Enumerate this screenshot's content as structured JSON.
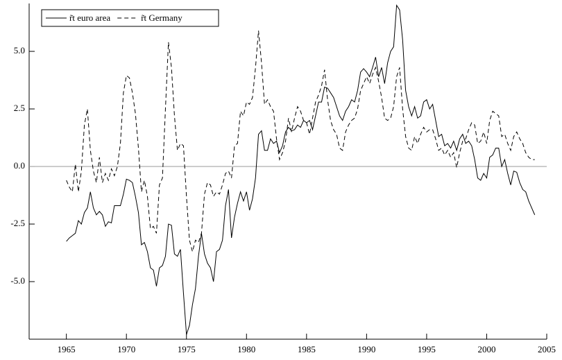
{
  "chart_data": {
    "type": "line",
    "x": [
      1965,
      1965.25,
      1965.5,
      1965.75,
      1966,
      1966.25,
      1966.5,
      1966.75,
      1967,
      1967.25,
      1967.5,
      1967.75,
      1968,
      1968.25,
      1968.5,
      1968.75,
      1969,
      1969.25,
      1969.5,
      1969.75,
      1970,
      1970.25,
      1970.5,
      1970.75,
      1971,
      1971.25,
      1971.5,
      1971.75,
      1972,
      1972.25,
      1972.5,
      1972.75,
      1973,
      1973.25,
      1973.5,
      1973.75,
      1974,
      1974.25,
      1974.5,
      1974.75,
      1975,
      1975.25,
      1975.5,
      1975.75,
      1976,
      1976.25,
      1976.5,
      1976.75,
      1977,
      1977.25,
      1977.5,
      1977.75,
      1978,
      1978.25,
      1978.5,
      1978.75,
      1979,
      1979.25,
      1979.5,
      1979.75,
      1980,
      1980.25,
      1980.5,
      1980.75,
      1981,
      1981.25,
      1981.5,
      1981.75,
      1982,
      1982.25,
      1982.5,
      1982.75,
      1983,
      1983.25,
      1983.5,
      1983.75,
      1984,
      1984.25,
      1984.5,
      1984.75,
      1985,
      1985.25,
      1985.5,
      1985.75,
      1986,
      1986.25,
      1986.5,
      1986.75,
      1987,
      1987.25,
      1987.5,
      1987.75,
      1988,
      1988.25,
      1988.5,
      1988.75,
      1989,
      1989.25,
      1989.5,
      1989.75,
      1990,
      1990.25,
      1990.5,
      1990.75,
      1991,
      1991.25,
      1991.5,
      1991.75,
      1992,
      1992.25,
      1992.5,
      1992.75,
      1993,
      1993.25,
      1993.5,
      1993.75,
      1994,
      1994.25,
      1994.5,
      1994.75,
      1995,
      1995.25,
      1995.5,
      1995.75,
      1996,
      1996.25,
      1996.5,
      1996.75,
      1997,
      1997.25,
      1997.5,
      1997.75,
      1998,
      1998.25,
      1998.5,
      1998.75,
      1999,
      1999.25,
      1999.5,
      1999.75,
      2000,
      2000.25,
      2000.5,
      2000.75,
      2001,
      2001.25,
      2001.5,
      2001.75,
      2002,
      2002.25,
      2002.5,
      2002.75,
      2003,
      2003.25,
      2003.5,
      2003.75,
      2004
    ],
    "series": [
      {
        "name": "r̃t euro area",
        "color": "#000000",
        "dash": false,
        "values": [
          -3.25,
          -3.1,
          -3.0,
          -2.9,
          -2.35,
          -2.5,
          -2.0,
          -1.8,
          -1.1,
          -1.8,
          -2.1,
          -1.95,
          -2.1,
          -2.6,
          -2.4,
          -2.45,
          -1.7,
          -1.7,
          -1.7,
          -1.2,
          -0.55,
          -0.6,
          -0.7,
          -1.3,
          -2.0,
          -3.4,
          -3.3,
          -3.7,
          -4.4,
          -4.5,
          -5.2,
          -4.4,
          -4.3,
          -3.9,
          -2.5,
          -2.55,
          -3.8,
          -3.9,
          -3.6,
          -5.5,
          -7.3,
          -6.9,
          -6.0,
          -5.3,
          -3.9,
          -2.9,
          -3.8,
          -4.2,
          -4.4,
          -5.0,
          -3.7,
          -3.6,
          -3.2,
          -1.7,
          -1.0,
          -3.1,
          -2.2,
          -1.6,
          -1.1,
          -1.5,
          -1.1,
          -1.9,
          -1.4,
          -0.5,
          1.4,
          1.55,
          0.7,
          0.7,
          1.2,
          1.0,
          1.1,
          0.6,
          0.9,
          1.5,
          1.7,
          1.55,
          1.6,
          1.8,
          1.7,
          2.0,
          1.9,
          2.0,
          1.6,
          2.2,
          2.8,
          2.8,
          3.45,
          3.4,
          3.2,
          3.0,
          2.6,
          2.2,
          2.0,
          2.4,
          2.6,
          2.9,
          2.8,
          3.3,
          4.1,
          4.25,
          4.1,
          3.9,
          4.3,
          4.75,
          3.9,
          4.3,
          3.6,
          4.5,
          5.0,
          5.2,
          7.0,
          6.8,
          5.5,
          3.3,
          2.6,
          2.2,
          2.6,
          2.1,
          2.2,
          2.8,
          2.9,
          2.5,
          2.7,
          2.0,
          1.3,
          1.4,
          0.9,
          1.0,
          0.8,
          1.1,
          0.7,
          1.2,
          1.4,
          1.0,
          1.1,
          0.9,
          0.3,
          -0.5,
          -0.6,
          -0.3,
          -0.5,
          0.4,
          0.5,
          0.8,
          0.8,
          0.0,
          0.3,
          -0.3,
          -0.8,
          -0.2,
          -0.25,
          -0.7,
          -1.0,
          -1.1,
          -1.5,
          -1.8,
          -2.1
        ]
      },
      {
        "name": "r̃t Germany",
        "color": "#000000",
        "dash": true,
        "values": [
          -0.6,
          -0.9,
          -1.1,
          0.1,
          -1.1,
          -0.2,
          1.8,
          2.5,
          0.7,
          -0.2,
          -0.7,
          0.4,
          -0.7,
          -0.3,
          -0.6,
          -0.1,
          -0.4,
          0.0,
          1.0,
          3.2,
          3.95,
          3.85,
          3.2,
          2.3,
          0.8,
          -1.1,
          -0.6,
          -1.3,
          -2.7,
          -2.6,
          -2.9,
          -0.8,
          -0.5,
          2.5,
          5.4,
          4.3,
          2.2,
          0.7,
          1.0,
          0.9,
          -1.3,
          -3.2,
          -3.7,
          -3.2,
          -3.3,
          -2.9,
          -1.2,
          -0.7,
          -0.8,
          -1.3,
          -1.1,
          -1.2,
          -0.8,
          -0.3,
          -0.2,
          -0.5,
          0.9,
          1.0,
          2.4,
          2.2,
          2.8,
          2.7,
          3.0,
          4.3,
          5.9,
          4.5,
          2.7,
          2.9,
          2.6,
          2.4,
          1.2,
          0.3,
          0.6,
          1.1,
          2.1,
          1.5,
          2.1,
          2.6,
          2.4,
          2.0,
          1.9,
          1.4,
          2.1,
          2.8,
          3.1,
          3.5,
          4.2,
          2.9,
          2.0,
          1.6,
          1.4,
          0.8,
          0.7,
          1.5,
          1.8,
          2.0,
          2.1,
          2.5,
          3.3,
          3.6,
          3.9,
          3.6,
          4.0,
          4.3,
          3.7,
          3.0,
          2.1,
          2.0,
          2.1,
          2.6,
          3.9,
          4.3,
          2.5,
          1.3,
          0.8,
          0.7,
          1.3,
          1.0,
          1.4,
          1.7,
          1.5,
          1.6,
          1.6,
          1.2,
          0.7,
          0.8,
          0.5,
          0.7,
          0.4,
          0.6,
          -0.05,
          0.6,
          1.1,
          1.2,
          1.6,
          1.9,
          1.8,
          1.0,
          1.1,
          1.5,
          1.0,
          2.0,
          2.4,
          2.3,
          2.2,
          1.3,
          1.4,
          1.0,
          0.7,
          1.3,
          1.5,
          1.2,
          1.0,
          0.6,
          0.4,
          0.3,
          0.3
        ]
      }
    ],
    "xlim": [
      1961.9,
      2005
    ],
    "xticks": [
      1965,
      1970,
      1975,
      1980,
      1985,
      1990,
      1995,
      2000,
      2005
    ],
    "ylim": [
      -7.5,
      7.08
    ],
    "yticks": [
      {
        "value": -5,
        "label": "-5.0"
      },
      -2.5,
      {
        "value": 0,
        "label": "0.0"
      },
      2.5,
      {
        "value": 5,
        "label": "5.0"
      }
    ],
    "zero_line": true,
    "legend": "top-left"
  }
}
